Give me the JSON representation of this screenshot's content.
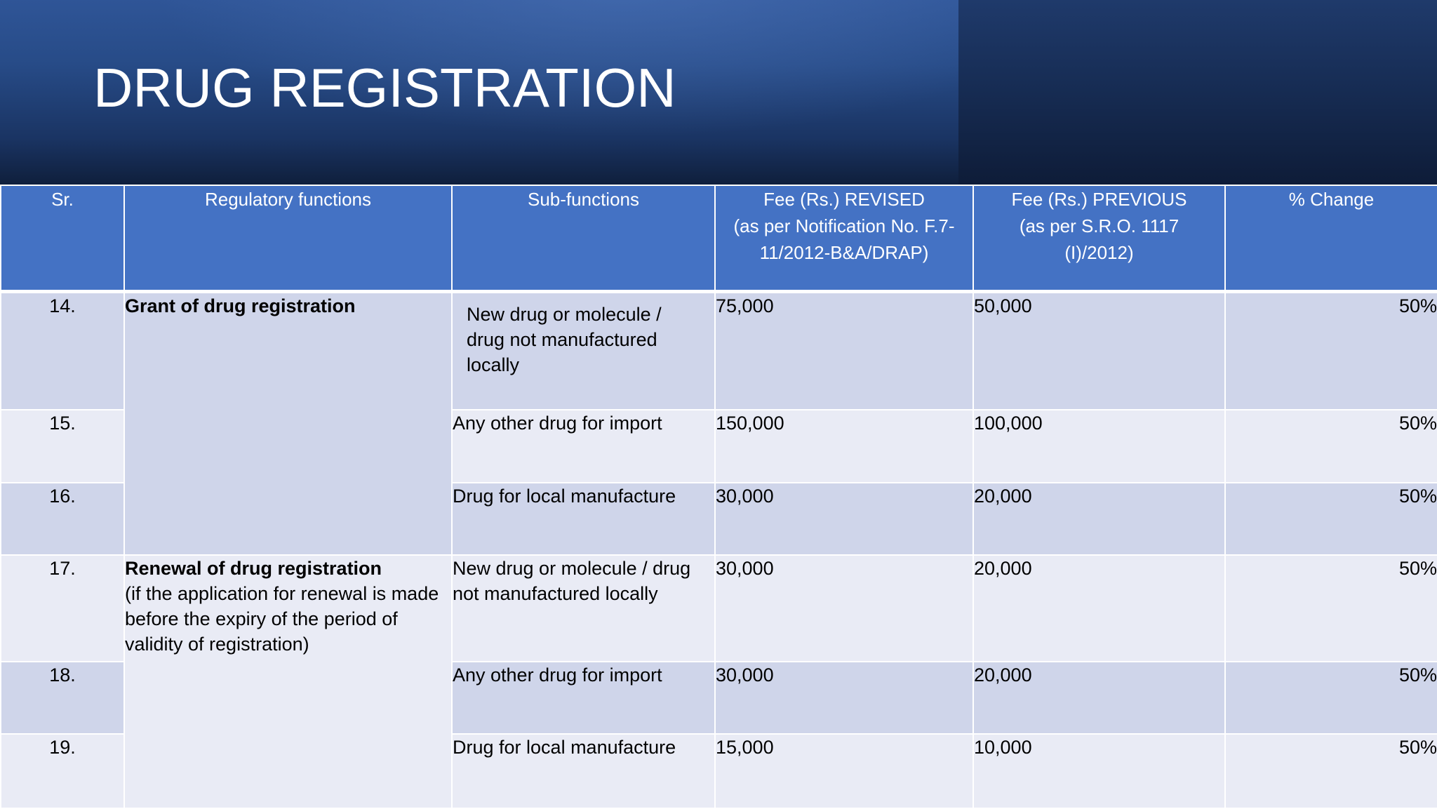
{
  "slide": {
    "title": "DRUG REGISTRATION"
  },
  "table": {
    "headers": {
      "sr": "Sr.",
      "functions": "Regulatory functions",
      "sub_functions": "Sub-functions",
      "fee_revised": [
        "Fee (Rs.) REVISED",
        "(as per Notification No. F.7-",
        "11/2012-B&A/DRAP)"
      ],
      "fee_previous": [
        "Fee (Rs.) PREVIOUS",
        "(as per S.R.O. 1117",
        "(I)/2012)"
      ],
      "change": "% Change"
    },
    "groups": [
      {
        "function_title": "Grant of drug registration",
        "function_note": ""
      },
      {
        "function_title": "Renewal of drug registration",
        "function_note": "(if the application for renewal is made before the expiry of the period of validity of registration)"
      }
    ],
    "rows": [
      {
        "sr": "14.",
        "sub": "New drug or molecule / drug not manufactured locally",
        "revised": "75,000",
        "previous": "50,000",
        "change": "50%"
      },
      {
        "sr": "15.",
        "sub": "Any other drug for import",
        "revised": "150,000",
        "previous": "100,000",
        "change": "50%"
      },
      {
        "sr": "16.",
        "sub": "Drug for local manufacture",
        "revised": "30,000",
        "previous": "20,000",
        "change": "50%"
      },
      {
        "sr": "17.",
        "sub": "New drug or molecule / drug not manufactured locally",
        "revised": "30,000",
        "previous": "20,000",
        "change": "50%"
      },
      {
        "sr": "18.",
        "sub": "Any other drug for import",
        "revised": "30,000",
        "previous": "20,000",
        "change": "50%"
      },
      {
        "sr": "19.",
        "sub": "Drug for local manufacture",
        "revised": "15,000",
        "previous": "10,000",
        "change": "50%"
      }
    ]
  }
}
